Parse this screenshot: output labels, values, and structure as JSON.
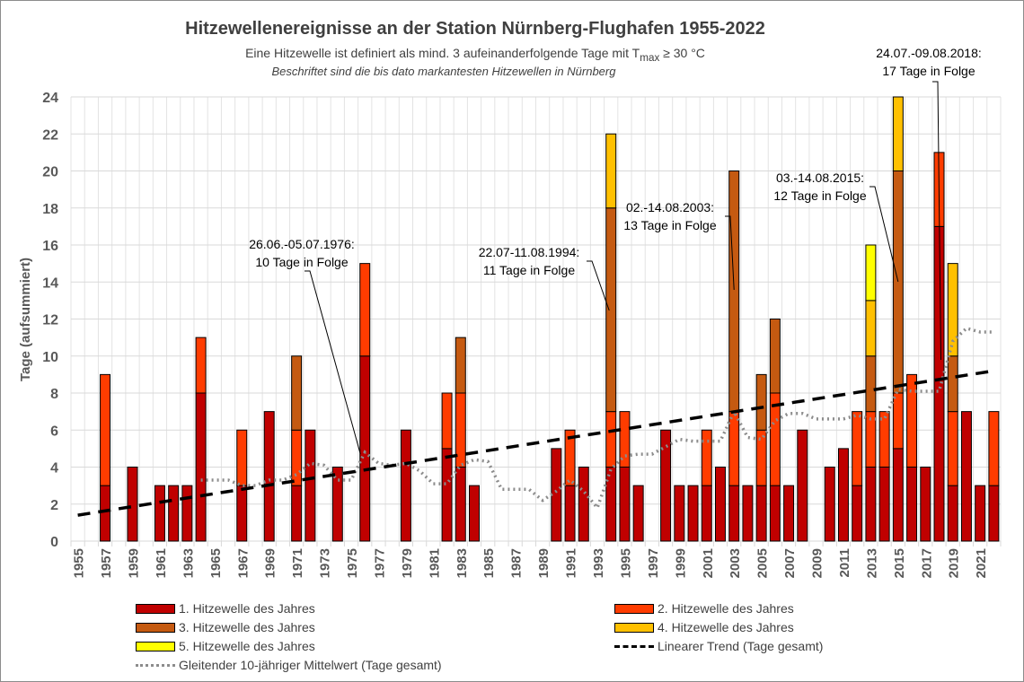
{
  "chart_data": {
    "type": "bar",
    "stacked": true,
    "title": "Hitzewellenereignisse an der Station Nürnberg-Flughafen 1955-2022",
    "subtitle": "Eine Hitzewelle ist definiert als mind. 3 aufeinanderfolgende Tage mit T",
    "subtitle_sub": "max",
    "subtitle_end": " ≥ 30 °C",
    "note": "Beschriftet sind die bis dato markantesten Hitzewellen in Nürnberg",
    "xlabel": "",
    "ylabel": "Tage (aufsummiert)",
    "ylim": [
      0,
      24
    ],
    "yticks": [
      0,
      2,
      4,
      6,
      8,
      10,
      12,
      14,
      16,
      18,
      20,
      22,
      24
    ],
    "grid": true,
    "legend_position": "bottom",
    "years": [
      1955,
      1956,
      1957,
      1958,
      1959,
      1960,
      1961,
      1962,
      1963,
      1964,
      1965,
      1966,
      1967,
      1968,
      1969,
      1970,
      1971,
      1972,
      1973,
      1974,
      1975,
      1976,
      1977,
      1978,
      1979,
      1980,
      1981,
      1982,
      1983,
      1984,
      1985,
      1986,
      1987,
      1988,
      1989,
      1990,
      1991,
      1992,
      1993,
      1994,
      1995,
      1996,
      1997,
      1998,
      1999,
      2000,
      2001,
      2002,
      2003,
      2004,
      2005,
      2006,
      2007,
      2008,
      2009,
      2010,
      2011,
      2012,
      2013,
      2014,
      2015,
      2016,
      2017,
      2018,
      2019,
      2020,
      2021,
      2022
    ],
    "xtick_labels": [
      "1955",
      "1957",
      "1959",
      "1961",
      "1963",
      "1965",
      "1967",
      "1969",
      "1971",
      "1973",
      "1975",
      "1977",
      "1979",
      "1981",
      "1983",
      "1985",
      "1987",
      "1989",
      "1991",
      "1993",
      "1995",
      "1997",
      "1999",
      "2001",
      "2003",
      "2005",
      "2007",
      "2009",
      "2011",
      "2013",
      "2015",
      "2017",
      "2019",
      "2021"
    ],
    "series": [
      {
        "name": "1. Hitzewelle des Jahres",
        "color": "#c00000",
        "values": [
          0,
          0,
          3,
          0,
          4,
          0,
          3,
          3,
          3,
          8,
          0,
          0,
          3,
          0,
          7,
          0,
          3,
          6,
          0,
          4,
          0,
          10,
          0,
          0,
          6,
          0,
          0,
          5,
          4,
          3,
          0,
          0,
          0,
          0,
          0,
          5,
          3,
          4,
          0,
          4,
          4,
          3,
          0,
          6,
          3,
          3,
          3,
          4,
          3,
          3,
          3,
          3,
          3,
          6,
          0,
          4,
          5,
          3,
          4,
          4,
          5,
          4,
          4,
          17,
          3,
          7,
          3,
          3
        ]
      },
      {
        "name": "2. Hitzewelle des Jahres",
        "color": "#ff3c00",
        "values": [
          0,
          0,
          6,
          0,
          0,
          0,
          0,
          0,
          0,
          3,
          0,
          0,
          3,
          0,
          0,
          0,
          3,
          0,
          0,
          0,
          0,
          5,
          0,
          0,
          0,
          0,
          0,
          3,
          4,
          0,
          0,
          0,
          0,
          0,
          0,
          0,
          3,
          0,
          0,
          3,
          3,
          0,
          0,
          0,
          0,
          0,
          3,
          0,
          4,
          0,
          3,
          5,
          0,
          0,
          0,
          0,
          0,
          4,
          3,
          3,
          3,
          5,
          0,
          4,
          4,
          0,
          0,
          4
        ]
      },
      {
        "name": "3. Hitzewelle des Jahres",
        "color": "#c55a11",
        "values": [
          0,
          0,
          0,
          0,
          0,
          0,
          0,
          0,
          0,
          0,
          0,
          0,
          0,
          0,
          0,
          0,
          4,
          0,
          0,
          0,
          0,
          0,
          0,
          0,
          0,
          0,
          0,
          0,
          3,
          0,
          0,
          0,
          0,
          0,
          0,
          0,
          0,
          0,
          0,
          11,
          0,
          0,
          0,
          0,
          0,
          0,
          0,
          0,
          13,
          0,
          3,
          4,
          0,
          0,
          0,
          0,
          0,
          0,
          3,
          0,
          12,
          0,
          0,
          0,
          3,
          0,
          0,
          0
        ]
      },
      {
        "name": "4. Hitzewelle des Jahres",
        "color": "#ffc000",
        "values": [
          0,
          0,
          0,
          0,
          0,
          0,
          0,
          0,
          0,
          0,
          0,
          0,
          0,
          0,
          0,
          0,
          0,
          0,
          0,
          0,
          0,
          0,
          0,
          0,
          0,
          0,
          0,
          0,
          0,
          0,
          0,
          0,
          0,
          0,
          0,
          0,
          0,
          0,
          0,
          4,
          0,
          0,
          0,
          0,
          0,
          0,
          0,
          0,
          0,
          0,
          0,
          0,
          0,
          0,
          0,
          0,
          0,
          0,
          3,
          0,
          4,
          0,
          0,
          0,
          5,
          0,
          0,
          0
        ]
      },
      {
        "name": "5. Hitzewelle des Jahres",
        "color": "#ffff00",
        "values": [
          0,
          0,
          0,
          0,
          0,
          0,
          0,
          0,
          0,
          0,
          0,
          0,
          0,
          0,
          0,
          0,
          0,
          0,
          0,
          0,
          0,
          0,
          0,
          0,
          0,
          0,
          0,
          0,
          0,
          0,
          0,
          0,
          0,
          0,
          0,
          0,
          0,
          0,
          0,
          0,
          0,
          0,
          0,
          0,
          0,
          0,
          0,
          0,
          0,
          0,
          0,
          0,
          0,
          0,
          0,
          0,
          0,
          0,
          3,
          0,
          0,
          0,
          0,
          0,
          0,
          0,
          0,
          0
        ]
      }
    ],
    "trend": {
      "name": "Linearer Trend (Tage gesamt)",
      "color": "#000000",
      "start": [
        1955,
        1.4
      ],
      "end": [
        2022,
        9.2
      ]
    },
    "moving_average": {
      "name": "Gleitender 10-jähriger Mittelwert (Tage gesamt)",
      "color": "#8c8c8c",
      "x": [
        1964,
        1965,
        1966,
        1967,
        1968,
        1969,
        1970,
        1971,
        1972,
        1973,
        1974,
        1975,
        1976,
        1977,
        1978,
        1979,
        1980,
        1981,
        1982,
        1983,
        1984,
        1985,
        1986,
        1987,
        1988,
        1989,
        1990,
        1991,
        1992,
        1993,
        1994,
        1995,
        1996,
        1997,
        1998,
        1999,
        2000,
        2001,
        2002,
        2003,
        2004,
        2005,
        2006,
        2007,
        2008,
        2009,
        2010,
        2011,
        2012,
        2013,
        2014,
        2015,
        2016,
        2017,
        2018,
        2019,
        2020,
        2021,
        2022
      ],
      "values": [
        3.3,
        3.3,
        3.3,
        3.0,
        3.0,
        3.3,
        3.3,
        3.6,
        4.2,
        4.1,
        3.3,
        3.3,
        4.8,
        4.2,
        4.1,
        4.2,
        3.8,
        3.1,
        3.1,
        4.1,
        4.4,
        4.3,
        2.8,
        2.8,
        2.8,
        2.2,
        2.7,
        3.3,
        2.7,
        1.8,
        3.9,
        4.6,
        4.7,
        4.7,
        5.1,
        5.5,
        5.4,
        5.4,
        5.4,
        7.0,
        5.6,
        5.5,
        6.5,
        6.9,
        6.9,
        6.6,
        6.6,
        6.6,
        6.8,
        6.6,
        6.6,
        8.2,
        8.1,
        8.1,
        8.1,
        10.8,
        11.5,
        11.3,
        11.3
      ]
    },
    "annotations": [
      {
        "year": 1976,
        "text": [
          "26.06.-05.07.1976:",
          "10 Tage in Folge"
        ]
      },
      {
        "year": 1994,
        "text": [
          "22.07-11.08.1994:",
          "11 Tage in Folge"
        ]
      },
      {
        "year": 2003,
        "text": [
          "02.-14.08.2003:",
          "13 Tage in Folge"
        ]
      },
      {
        "year": 2015,
        "text": [
          "03.-14.08.2015:",
          "12 Tage in Folge"
        ]
      },
      {
        "year": 2018,
        "text": [
          "24.07.-09.08.2018:",
          "17 Tage in Folge"
        ]
      }
    ]
  }
}
